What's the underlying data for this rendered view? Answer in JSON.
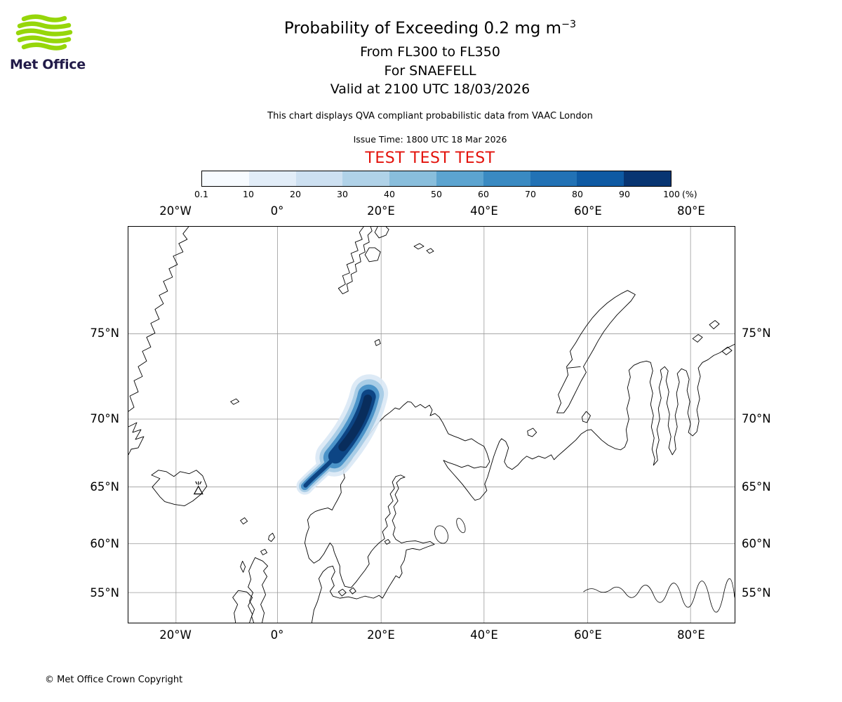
{
  "logo": {
    "brand": "Met Office",
    "wave_color": "#96d60a",
    "text_color": "#221b49"
  },
  "header": {
    "title": "Probability of Exceeding 0.2 mg m",
    "title_sup": "−3",
    "line2": "From FL300 to FL350",
    "line3": "For SNAEFELL",
    "line4": "Valid at 2100 UTC 18/03/2026",
    "note": "This chart displays QVA compliant probabilistic data from VAAC London",
    "issue_time": "Issue Time: 1800 UTC 18 Mar 2026",
    "test_banner": "TEST TEST TEST",
    "test_color": "#e3120b"
  },
  "colorbar": {
    "tick_labels": [
      "0.1",
      "10",
      "20",
      "30",
      "40",
      "50",
      "60",
      "70",
      "80",
      "90",
      "100"
    ],
    "unit_label": "(%)",
    "segment_colors": [
      "#f7fbff",
      "#e2edf8",
      "#cde0f1",
      "#b0d2e8",
      "#89bedc",
      "#5ca4d0",
      "#3a8ac2",
      "#2272b5",
      "#0e5aa3",
      "#083572"
    ]
  },
  "map": {
    "lon_labels": [
      "20°W",
      "0°",
      "20°E",
      "40°E",
      "60°E",
      "80°E"
    ],
    "lat_labels": [
      "75°N",
      "70°N",
      "65°N",
      "60°N",
      "55°N"
    ],
    "plume_layers": {
      "halo": "#d9e8f5",
      "light": "#a9cde6",
      "mid": "#4b93c8",
      "dark": "#0d4584",
      "core": "#092d5c"
    }
  },
  "footer": {
    "copyright": "© Met Office Crown Copyright"
  }
}
